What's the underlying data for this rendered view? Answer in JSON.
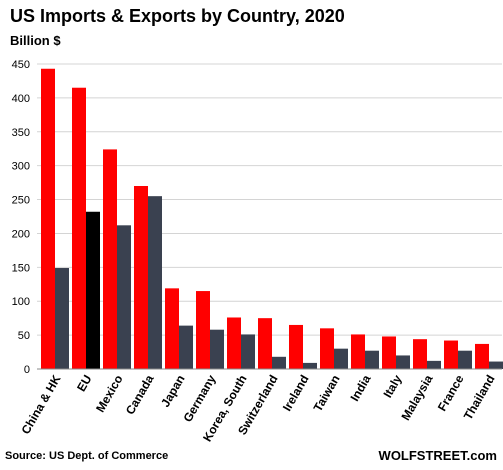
{
  "chart_data": {
    "type": "bar",
    "title": "US Imports & Exports by Country, 2020",
    "ylabel": "Billion $",
    "ylim": [
      0,
      450
    ],
    "yticks": [
      0,
      50,
      100,
      150,
      200,
      250,
      300,
      350,
      400,
      450
    ],
    "grid": true,
    "legend": "none",
    "categories": [
      "China & HK",
      "EU",
      "Mexico",
      "Canada",
      "Japan",
      "Germany",
      "Korea, South",
      "Switzerland",
      "Ireland",
      "Taiwan",
      "India",
      "Italy",
      "Malaysia",
      "France",
      "Thailand"
    ],
    "series": [
      {
        "color": "#ff0000",
        "values": [
          443,
          415,
          324,
          270,
          119,
          115,
          76,
          75,
          65,
          60,
          51,
          48,
          44,
          42,
          37
        ]
      },
      {
        "color": "#3a4150",
        "highlight_color": "#000000",
        "highlight_index": 1,
        "values": [
          149,
          232,
          212,
          255,
          64,
          58,
          51,
          18,
          9,
          30,
          27,
          20,
          12,
          27,
          11
        ]
      }
    ],
    "source": "Source: US Dept. of Commerce",
    "brand": "WOLFSTREET.com"
  }
}
